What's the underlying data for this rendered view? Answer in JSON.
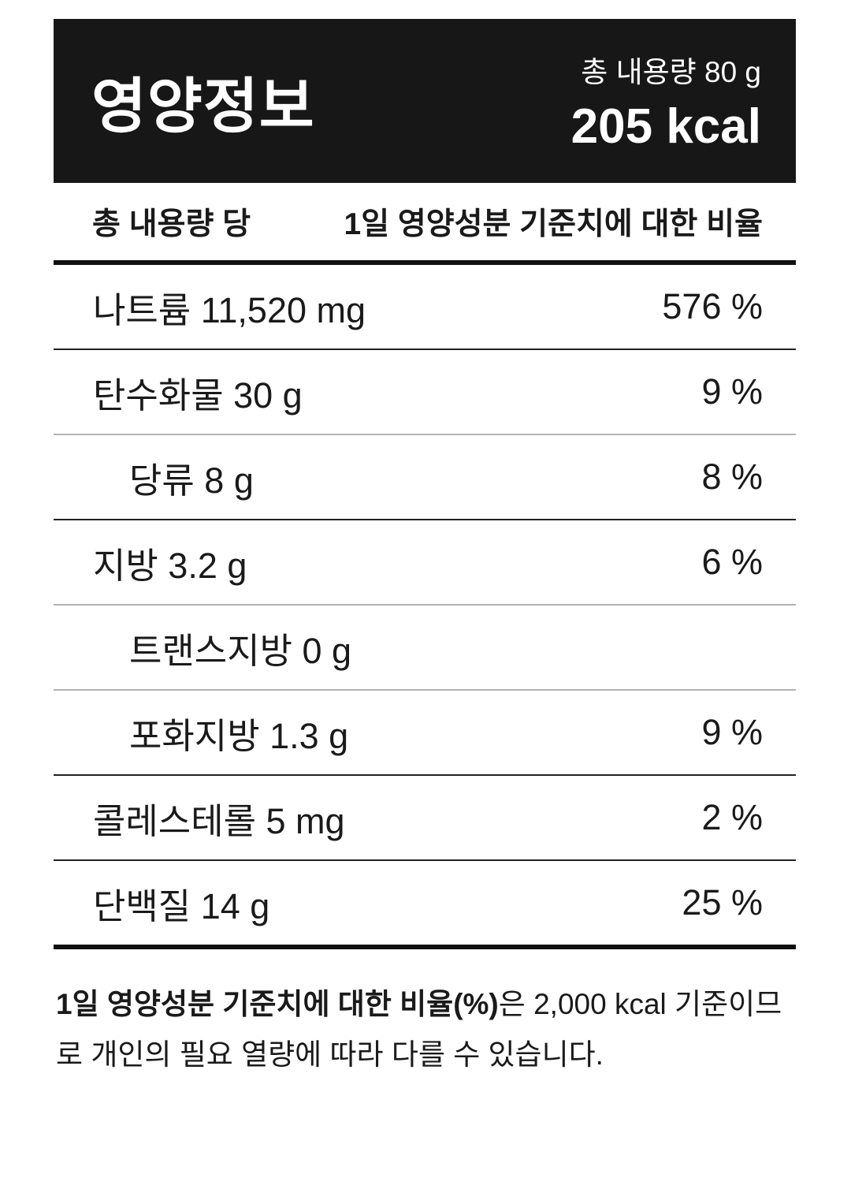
{
  "header": {
    "title": "영양정보",
    "serving_label": "총 내용량 80 g",
    "calories": "205 kcal"
  },
  "table": {
    "column_left": "총 내용량 당",
    "column_right": "1일 영양성분 기준치에 대한 비율",
    "rows": [
      {
        "name": "나트륨 11,520 mg",
        "percent": "576 %",
        "sub": false
      },
      {
        "name": "탄수화물 30 g",
        "percent": "9 %",
        "sub": false
      },
      {
        "name": "당류 8 g",
        "percent": "8 %",
        "sub": true
      },
      {
        "name": "지방 3.2 g",
        "percent": "6 %",
        "sub": false
      },
      {
        "name": "트랜스지방 0 g",
        "percent": "",
        "sub": true
      },
      {
        "name": "포화지방 1.3 g",
        "percent": "9 %",
        "sub": true
      },
      {
        "name": "콜레스테롤 5 mg",
        "percent": "2 %",
        "sub": false
      },
      {
        "name": "단백질 14 g",
        "percent": "25 %",
        "sub": false
      }
    ]
  },
  "footnote": {
    "bold": "1일 영양성분 기준치에 대한 비율(%)",
    "regular": "은 2,000 kcal 기준이므로 개인의 필요 열량에 따라 다를 수 있습니다."
  },
  "colors": {
    "header_bg": "#171717",
    "header_text": "#ffffff",
    "body_text": "#1a1a1a",
    "divider_dark": "#222222",
    "divider_light": "#b2b2b2",
    "rule_thick": "#111111"
  }
}
